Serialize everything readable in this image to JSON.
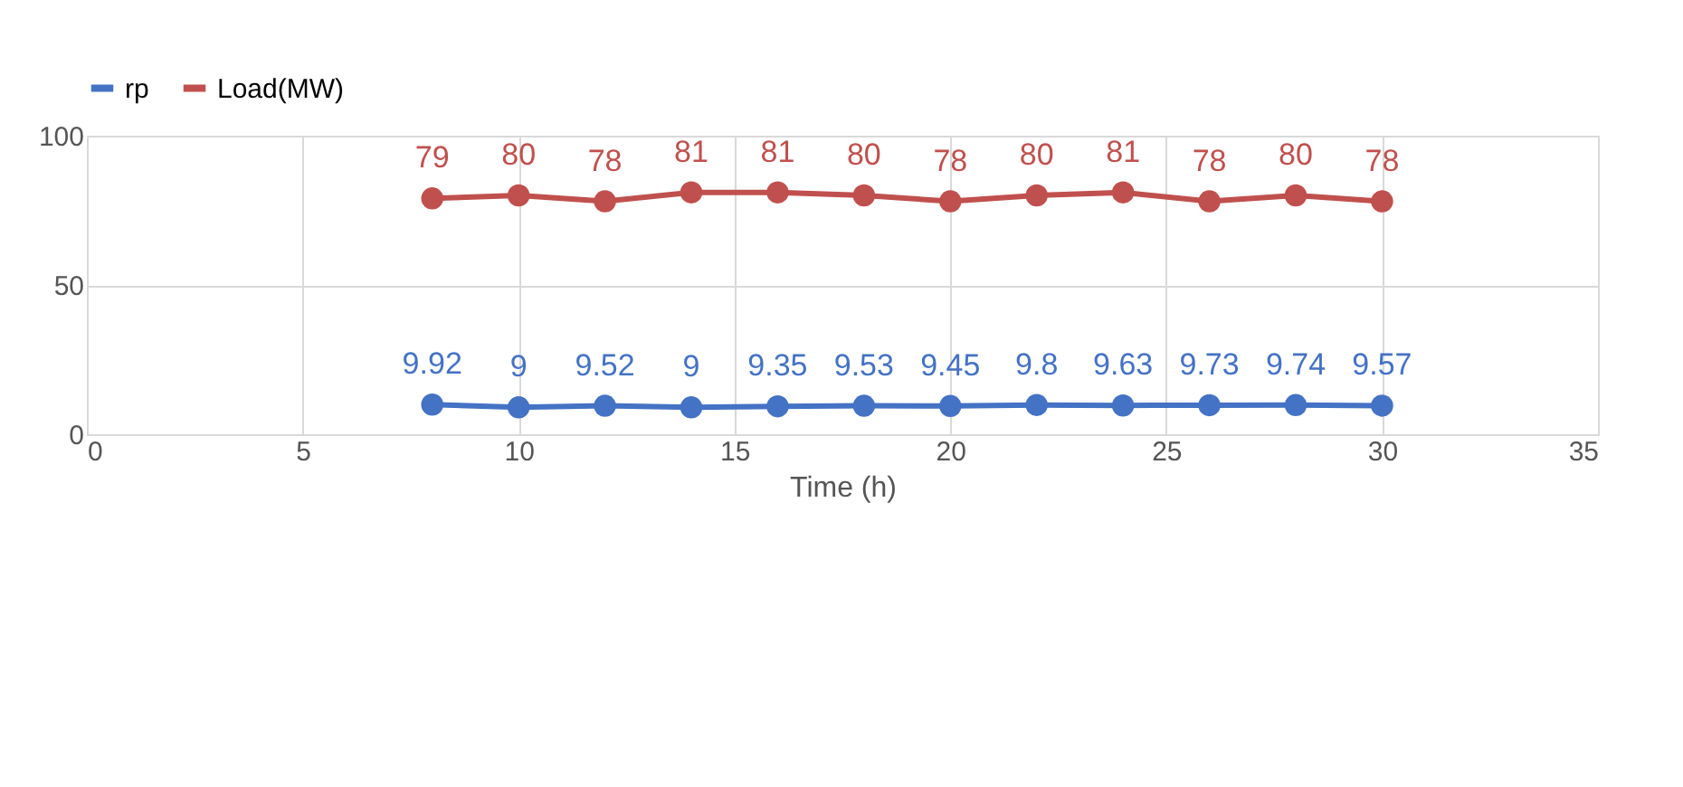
{
  "chart_data": {
    "type": "line",
    "xlabel": "Time (h)",
    "x": [
      8,
      10,
      12,
      14,
      16,
      18,
      20,
      22,
      24,
      26,
      28,
      30
    ],
    "series": [
      {
        "name": "rp",
        "color": "#4472c4",
        "values": [
          9.92,
          9,
          9.52,
          9,
          9.35,
          9.53,
          9.45,
          9.8,
          9.63,
          9.73,
          9.74,
          9.57
        ]
      },
      {
        "name": "Load(MW)",
        "color": "#c0504d",
        "values": [
          79,
          80,
          78,
          81,
          81,
          80,
          78,
          80,
          81,
          78,
          80,
          78
        ]
      }
    ],
    "xlim": [
      0,
      35
    ],
    "xticks": [
      0,
      5,
      10,
      15,
      20,
      25,
      30,
      35
    ],
    "ylim": [
      0,
      100
    ],
    "yticks": [
      0,
      50,
      100
    ],
    "grid": true,
    "legend": "top",
    "marker": "circle",
    "line_style": "solid",
    "data_labels": true
  }
}
